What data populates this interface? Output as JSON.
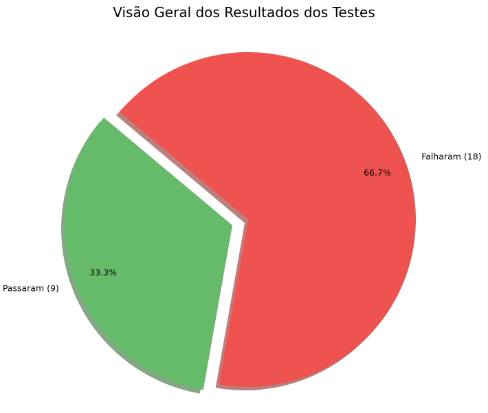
{
  "chart_data": {
    "type": "pie",
    "title": "Visão Geral dos Resultados dos Testes",
    "slices": [
      {
        "label": "Passaram (9)",
        "value": 9,
        "percent_label": "33.3%",
        "color": "#66bb6a",
        "exploded": true
      },
      {
        "label": "Falharam (18)",
        "value": 18,
        "percent_label": "66.7%",
        "color": "#ef5350",
        "exploded": false
      }
    ],
    "shadow": true,
    "start_angle_deg": 140,
    "direction": "counterclockwise"
  }
}
